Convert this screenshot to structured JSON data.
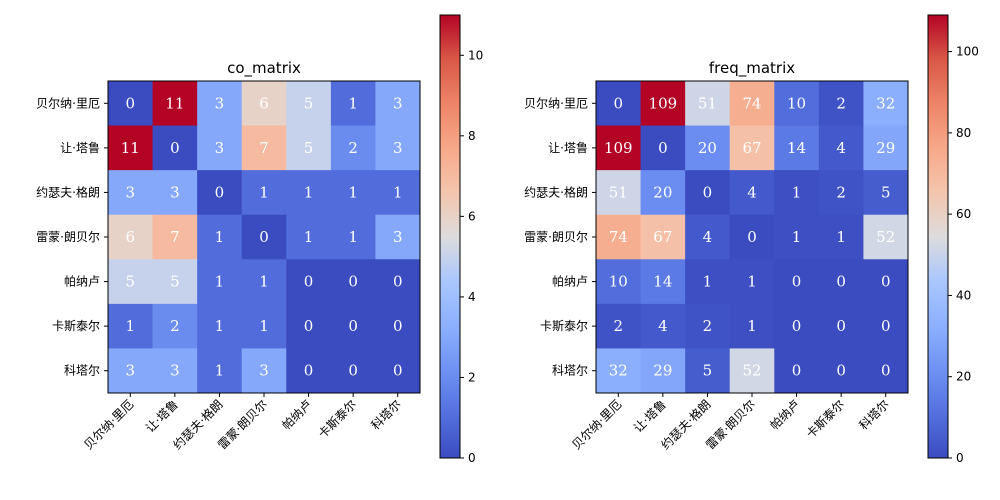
{
  "chart_data": [
    {
      "type": "heatmap",
      "title": "co_matrix",
      "labels": [
        "贝尔纳·里厄",
        "让·塔鲁",
        "约瑟夫·格朗",
        "雷蒙·朗贝尔",
        "帕纳卢",
        "卡斯泰尔",
        "科塔尔"
      ],
      "values": [
        [
          0,
          11,
          3,
          6,
          5,
          1,
          3
        ],
        [
          11,
          0,
          3,
          7,
          5,
          2,
          3
        ],
        [
          3,
          3,
          0,
          1,
          1,
          1,
          1
        ],
        [
          6,
          7,
          1,
          0,
          1,
          1,
          3
        ],
        [
          5,
          5,
          1,
          1,
          0,
          0,
          0
        ],
        [
          1,
          2,
          1,
          1,
          0,
          0,
          0
        ],
        [
          3,
          3,
          1,
          3,
          0,
          0,
          0
        ]
      ],
      "vmin": 0,
      "vmax": 11,
      "colormap": "coolwarm",
      "colorbar_ticks": [
        0,
        2,
        4,
        6,
        8,
        10
      ]
    },
    {
      "type": "heatmap",
      "title": "freq_matrix",
      "labels": [
        "贝尔纳·里厄",
        "让·塔鲁",
        "约瑟夫·格朗",
        "雷蒙·朗贝尔",
        "帕纳卢",
        "卡斯泰尔",
        "科塔尔"
      ],
      "values": [
        [
          0,
          109,
          51,
          74,
          10,
          2,
          32
        ],
        [
          109,
          0,
          20,
          67,
          14,
          4,
          29
        ],
        [
          51,
          20,
          0,
          4,
          1,
          2,
          5
        ],
        [
          74,
          67,
          4,
          0,
          1,
          1,
          52
        ],
        [
          10,
          14,
          1,
          1,
          0,
          0,
          0
        ],
        [
          2,
          4,
          2,
          1,
          0,
          0,
          0
        ],
        [
          32,
          29,
          5,
          52,
          0,
          0,
          0
        ]
      ],
      "vmin": 0,
      "vmax": 109,
      "colormap": "coolwarm",
      "colorbar_ticks": [
        0,
        20,
        40,
        60,
        80,
        100
      ]
    }
  ]
}
